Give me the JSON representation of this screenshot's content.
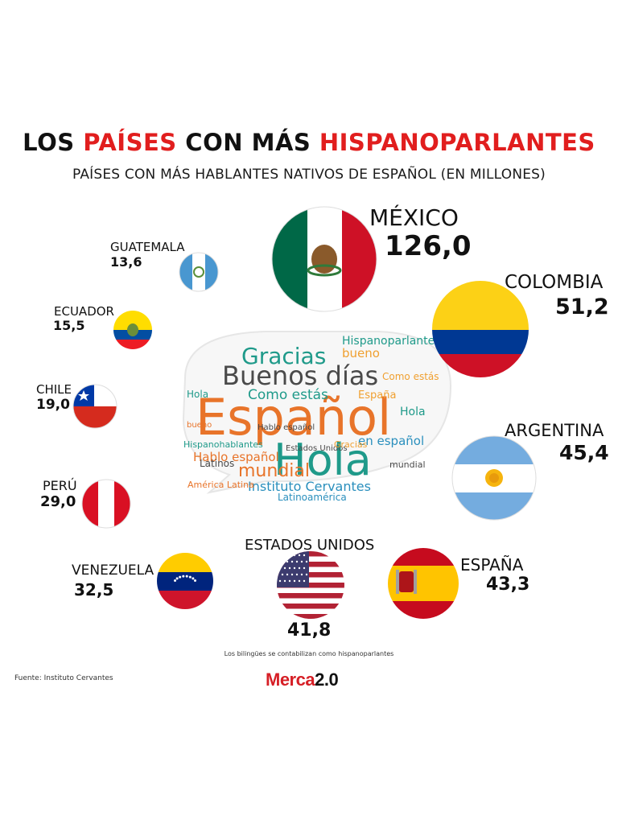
{
  "header": {
    "title_part1": "LOS ",
    "title_part2": "PAÍSES",
    "title_part3": " CON MÁS ",
    "title_part4": "HISPANOPARLANTES",
    "subtitle": "PAÍSES CON MÁS HABLANTES NATIVOS DE ESPAÑOL (EN MILLONES)"
  },
  "chart_data": {
    "type": "bar",
    "title": "LOS PAÍSES CON MÁS HISPANOPARLANTES",
    "subtitle": "PAÍSES CON MÁS HABLANTES NATIVOS DE ESPAÑOL (EN MILLONES)",
    "categories": [
      "MÉXICO",
      "COLOMBIA",
      "ARGENTINA",
      "ESPAÑA",
      "ESTADOS UNIDOS",
      "VENEZUELA",
      "PERÚ",
      "CHILE",
      "ECUADOR",
      "GUATEMALA"
    ],
    "values": [
      126.0,
      51.2,
      45.4,
      43.3,
      41.8,
      32.5,
      29.0,
      19.0,
      15.5,
      13.6
    ],
    "value_labels": [
      "126,0",
      "51,2",
      "45,4",
      "43,3",
      "41,8",
      "32,5",
      "29,0",
      "19,0",
      "15,5",
      "13,6"
    ],
    "encoding": "bubble size proportional to value"
  },
  "word_cloud": {
    "big": [
      "Español",
      "Hola",
      "Buenos días",
      "Gracias",
      "mundial",
      "Como estás",
      "Instituto Cervantes",
      "Hablo español",
      "en español",
      "bueno",
      "Hispanoparlantes",
      "España",
      "América Latina",
      "Latinoamérica",
      "Latinos",
      "Estados Unidos",
      "Hispanohablantes"
    ],
    "colors": [
      "#e8742a",
      "#1f9a8a",
      "#4a4a4a",
      "#f0a030",
      "#2a8fbd"
    ]
  },
  "footer": {
    "note": "Los bilingües se contabilizan como hispanoparlantes",
    "source": "Fuente: Instituto Cervantes",
    "logo_a": "Merca",
    "logo_b": "2.0"
  }
}
